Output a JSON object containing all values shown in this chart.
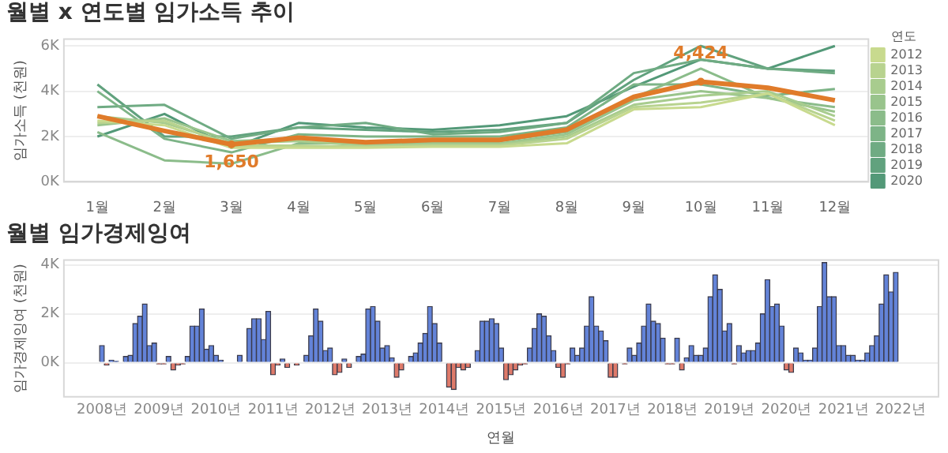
{
  "chart_data": [
    {
      "type": "line",
      "title": "월별 x 연도별 임가소득 추이",
      "ylabel": "임가소득 (천원)",
      "categories": [
        "1월",
        "2월",
        "3월",
        "4월",
        "5월",
        "6월",
        "7월",
        "8월",
        "9월",
        "10월",
        "11월",
        "12월"
      ],
      "ylim": [
        0,
        6300
      ],
      "yticks": [
        {
          "value": 0,
          "label": "0K"
        },
        {
          "value": 2000,
          "label": "2K"
        },
        {
          "value": 4000,
          "label": "4K"
        },
        {
          "value": 6000,
          "label": "6K"
        }
      ],
      "grid": "y",
      "legend": "right",
      "legend_title": "연도",
      "marker": "none",
      "line_style": "solid",
      "series": [
        {
          "name": "2012",
          "color": "#c8da8e",
          "values": [
            2700,
            2500,
            1500,
            1500,
            1500,
            1550,
            1550,
            1700,
            3200,
            3300,
            3900,
            2500
          ]
        },
        {
          "name": "2013",
          "color": "#b8d38f",
          "values": [
            2600,
            2700,
            1600,
            1600,
            1550,
            1600,
            1600,
            1900,
            3300,
            3500,
            3900,
            2700
          ]
        },
        {
          "name": "2014",
          "color": "#a8cc8e",
          "values": [
            2900,
            2600,
            1700,
            1800,
            1600,
            1650,
            1650,
            2000,
            3400,
            3800,
            4000,
            2900
          ]
        },
        {
          "name": "2015",
          "color": "#99c48c",
          "values": [
            2500,
            2800,
            1800,
            1900,
            1700,
            1700,
            1700,
            2100,
            3600,
            4000,
            3700,
            3100
          ]
        },
        {
          "name": "2016",
          "color": "#8bbc8a",
          "values": [
            2200,
            950,
            800,
            1700,
            1700,
            1800,
            1800,
            2200,
            3700,
            5000,
            3700,
            3300
          ]
        },
        {
          "name": "2017",
          "color": "#7db487",
          "values": [
            4000,
            1900,
            1300,
            2100,
            2000,
            2000,
            2000,
            2400,
            4300,
            4300,
            3800,
            4100
          ]
        },
        {
          "name": "2018",
          "color": "#6fab83",
          "values": [
            3300,
            3400,
            1900,
            2400,
            2600,
            2100,
            2200,
            2600,
            4800,
            5400,
            5000,
            4800
          ]
        },
        {
          "name": "2019",
          "color": "#61a27e",
          "values": [
            4300,
            2000,
            2000,
            2400,
            2300,
            2200,
            2300,
            2600,
            4500,
            6000,
            5000,
            4900
          ]
        },
        {
          "name": "2020",
          "color": "#539978",
          "values": [
            2000,
            3000,
            1500,
            2600,
            2400,
            2300,
            2500,
            2900,
            4200,
            5400,
            5000,
            6000
          ]
        },
        {
          "color": "#e07b2a",
          "values": [
            2900,
            2250,
            1650,
            1950,
            1750,
            1850,
            1850,
            2300,
            3750,
            4424,
            4150,
            3600
          ],
          "value_labels": [
            null,
            null,
            "1,650",
            null,
            null,
            null,
            null,
            null,
            null,
            "4,424",
            null,
            null
          ]
        }
      ]
    },
    {
      "type": "bar",
      "title": "월별 임가경제잉여",
      "ylabel": "임가경제잉여 (천원)",
      "xlabel": "연월",
      "xlim": [
        "2007-05",
        "2022-09"
      ],
      "xticks": [
        {
          "value": "2008-01",
          "label": "2008년"
        },
        {
          "value": "2009-01",
          "label": "2009년"
        },
        {
          "value": "2010-01",
          "label": "2010년"
        },
        {
          "value": "2011-01",
          "label": "2011년"
        },
        {
          "value": "2012-01",
          "label": "2012년"
        },
        {
          "value": "2013-01",
          "label": "2013년"
        },
        {
          "value": "2014-01",
          "label": "2014년"
        },
        {
          "value": "2015-01",
          "label": "2015년"
        },
        {
          "value": "2016-01",
          "label": "2016년"
        },
        {
          "value": "2017-01",
          "label": "2017년"
        },
        {
          "value": "2018-01",
          "label": "2018년"
        },
        {
          "value": "2019-01",
          "label": "2019년"
        },
        {
          "value": "2020-01",
          "label": "2020년"
        },
        {
          "value": "2021-01",
          "label": "2021년"
        },
        {
          "value": "2022-01",
          "label": "2022년"
        }
      ],
      "ylim": [
        -1400,
        4200
      ],
      "yticks": [
        {
          "value": 0,
          "label": "0K"
        },
        {
          "value": 2000,
          "label": "2K"
        },
        {
          "value": 4000,
          "label": "4K"
        }
      ],
      "grid": "y",
      "x": [
        "2008-01",
        "2008-02",
        "2008-03",
        "2008-04",
        "2008-05",
        "2008-06",
        "2008-07",
        "2008-08",
        "2008-09",
        "2008-10",
        "2008-11",
        "2008-12",
        "2009-01",
        "2009-02",
        "2009-03",
        "2009-04",
        "2009-05",
        "2009-06",
        "2009-07",
        "2009-08",
        "2009-09",
        "2009-10",
        "2009-11",
        "2009-12",
        "2010-01",
        "2010-02",
        "2010-03",
        "2010-04",
        "2010-05",
        "2010-06",
        "2010-07",
        "2010-08",
        "2010-09",
        "2010-10",
        "2010-11",
        "2010-12",
        "2011-01",
        "2011-02",
        "2011-03",
        "2011-04",
        "2011-05",
        "2011-06",
        "2011-07",
        "2011-08",
        "2011-09",
        "2011-10",
        "2011-11",
        "2011-12",
        "2012-01",
        "2012-02",
        "2012-03",
        "2012-04",
        "2012-05",
        "2012-06",
        "2012-07",
        "2012-08",
        "2012-09",
        "2012-10",
        "2012-11",
        "2012-12",
        "2013-01",
        "2013-02",
        "2013-03",
        "2013-04",
        "2013-05",
        "2013-06",
        "2013-07",
        "2013-08",
        "2013-09",
        "2013-10",
        "2013-11",
        "2013-12",
        "2014-01",
        "2014-02",
        "2014-03",
        "2014-04",
        "2014-05",
        "2014-06",
        "2014-07",
        "2014-08",
        "2014-09",
        "2014-10",
        "2014-11",
        "2014-12",
        "2015-01",
        "2015-02",
        "2015-03",
        "2015-04",
        "2015-05",
        "2015-06",
        "2015-07",
        "2015-08",
        "2015-09",
        "2015-10",
        "2015-11",
        "2015-12",
        "2016-01",
        "2016-02",
        "2016-03",
        "2016-04",
        "2016-05",
        "2016-06",
        "2016-07",
        "2016-08",
        "2016-09",
        "2016-10",
        "2016-11",
        "2016-12",
        "2017-01",
        "2017-02",
        "2017-03",
        "2017-04",
        "2017-05",
        "2017-06",
        "2017-07",
        "2017-08",
        "2017-09",
        "2017-10",
        "2017-11",
        "2017-12",
        "2018-01",
        "2018-02",
        "2018-03",
        "2018-04",
        "2018-05",
        "2018-06",
        "2018-07",
        "2018-08",
        "2018-09",
        "2018-10",
        "2018-11",
        "2018-12",
        "2019-01",
        "2019-02",
        "2019-03",
        "2019-04",
        "2019-05",
        "2019-06",
        "2019-07",
        "2019-08",
        "2019-09",
        "2019-10",
        "2019-11",
        "2019-12",
        "2020-01",
        "2020-02",
        "2020-03",
        "2020-04",
        "2020-05",
        "2020-06",
        "2020-07",
        "2020-08",
        "2020-09",
        "2020-10",
        "2020-11",
        "2020-12",
        "2021-01",
        "2021-02",
        "2021-03",
        "2021-04",
        "2021-05",
        "2021-06",
        "2021-07",
        "2021-08",
        "2021-09",
        "2021-10",
        "2021-11",
        "2021-12"
      ],
      "values": [
        700,
        -100,
        100,
        50,
        0,
        250,
        300,
        1600,
        1900,
        2400,
        700,
        800,
        -50,
        -50,
        250,
        -300,
        -100,
        -50,
        250,
        1500,
        1500,
        2200,
        550,
        700,
        300,
        100,
        0,
        0,
        0,
        300,
        0,
        1400,
        1800,
        1800,
        950,
        2100,
        -500,
        -100,
        150,
        -200,
        0,
        -100,
        0,
        300,
        1100,
        2200,
        1700,
        500,
        600,
        -500,
        -400,
        150,
        -200,
        0,
        250,
        350,
        2200,
        2300,
        1700,
        600,
        700,
        200,
        -600,
        -300,
        0,
        250,
        400,
        800,
        1200,
        2300,
        1600,
        800,
        0,
        -1000,
        -1100,
        -200,
        -300,
        -200,
        0,
        500,
        1700,
        1700,
        1800,
        1600,
        600,
        -700,
        -500,
        -300,
        -100,
        -50,
        600,
        1400,
        2000,
        1900,
        1100,
        500,
        -200,
        -600,
        -50,
        600,
        300,
        600,
        1500,
        2700,
        1500,
        1300,
        900,
        -600,
        -600,
        0,
        -50,
        600,
        300,
        800,
        1500,
        2400,
        1700,
        1600,
        1000,
        -50,
        -50,
        1000,
        -300,
        200,
        700,
        300,
        300,
        600,
        2700,
        3600,
        3000,
        1300,
        1600,
        -50,
        700,
        400,
        500,
        500,
        800,
        2000,
        3400,
        2300,
        2400,
        1500,
        -300,
        -400,
        600,
        400,
        100,
        100,
        600,
        2300,
        4100,
        2700,
        2700,
        700,
        700,
        300,
        300,
        100,
        100,
        400,
        700,
        1100,
        2400,
        3600,
        2900,
        3700
      ],
      "colors": [
        "#6383d8",
        "#de7a6a",
        "#6383d8",
        "#6383d8",
        "#6383d8",
        "#6383d8",
        "#6383d8",
        "#6383d8",
        "#6383d8",
        "#6383d8",
        "#6383d8",
        "#6383d8",
        "#de7a6a",
        "#de7a6a",
        "#6383d8",
        "#de7a6a",
        "#de7a6a",
        "#de7a6a",
        "#6383d8",
        "#6383d8",
        "#6383d8",
        "#6383d8",
        "#6383d8",
        "#6383d8",
        "#6383d8",
        "#6383d8",
        "#6383d8",
        "#6383d8",
        "#6383d8",
        "#6383d8",
        "#6383d8",
        "#6383d8",
        "#6383d8",
        "#6383d8",
        "#6383d8",
        "#6383d8",
        "#de7a6a",
        "#de7a6a",
        "#6383d8",
        "#de7a6a",
        "#6383d8",
        "#de7a6a",
        "#6383d8",
        "#6383d8",
        "#6383d8",
        "#6383d8",
        "#6383d8",
        "#6383d8",
        "#6383d8",
        "#de7a6a",
        "#de7a6a",
        "#6383d8",
        "#de7a6a",
        "#6383d8",
        "#6383d8",
        "#6383d8",
        "#6383d8",
        "#6383d8",
        "#6383d8",
        "#6383d8",
        "#6383d8",
        "#6383d8",
        "#de7a6a",
        "#de7a6a",
        "#6383d8",
        "#6383d8",
        "#6383d8",
        "#6383d8",
        "#6383d8",
        "#6383d8",
        "#6383d8",
        "#6383d8",
        "#6383d8",
        "#de7a6a",
        "#de7a6a",
        "#de7a6a",
        "#de7a6a",
        "#de7a6a",
        "#6383d8",
        "#6383d8",
        "#6383d8",
        "#6383d8",
        "#6383d8",
        "#6383d8",
        "#6383d8",
        "#de7a6a",
        "#de7a6a",
        "#de7a6a",
        "#de7a6a",
        "#de7a6a",
        "#6383d8",
        "#6383d8",
        "#6383d8",
        "#6383d8",
        "#6383d8",
        "#6383d8",
        "#de7a6a",
        "#de7a6a",
        "#de7a6a",
        "#6383d8",
        "#6383d8",
        "#6383d8",
        "#6383d8",
        "#6383d8",
        "#6383d8",
        "#6383d8",
        "#6383d8",
        "#de7a6a",
        "#de7a6a",
        "#6383d8",
        "#de7a6a",
        "#6383d8",
        "#6383d8",
        "#6383d8",
        "#6383d8",
        "#6383d8",
        "#6383d8",
        "#6383d8",
        "#6383d8",
        "#de7a6a",
        "#de7a6a",
        "#6383d8",
        "#de7a6a",
        "#6383d8",
        "#6383d8",
        "#6383d8",
        "#6383d8",
        "#6383d8",
        "#6383d8",
        "#6383d8",
        "#6383d8",
        "#6383d8",
        "#6383d8",
        "#de7a6a",
        "#6383d8",
        "#6383d8",
        "#6383d8",
        "#6383d8",
        "#6383d8",
        "#6383d8",
        "#6383d8",
        "#6383d8",
        "#6383d8",
        "#6383d8",
        "#de7a6a",
        "#de7a6a",
        "#6383d8",
        "#6383d8",
        "#6383d8",
        "#6383d8",
        "#6383d8",
        "#6383d8",
        "#6383d8",
        "#6383d8",
        "#6383d8",
        "#6383d8",
        "#6383d8",
        "#6383d8",
        "#6383d8",
        "#6383d8",
        "#6383d8",
        "#6383d8",
        "#6383d8",
        "#6383d8",
        "#6383d8",
        "#6383d8",
        "#6383d8",
        "#6383d8"
      ]
    }
  ]
}
